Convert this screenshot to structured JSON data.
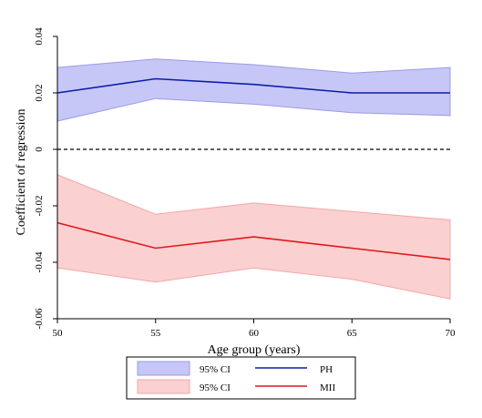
{
  "chart_data": {
    "type": "line",
    "xlabel": "Age group (years)",
    "ylabel": "Coefficient of regression",
    "x": [
      50,
      55,
      60,
      65,
      70
    ],
    "xlim": [
      50,
      70
    ],
    "ylim": [
      -0.06,
      0.04
    ],
    "x_ticks": [
      50,
      55,
      60,
      65,
      70
    ],
    "x_tick_labels": [
      "50",
      "55",
      "60",
      "65",
      "70"
    ],
    "y_ticks": [
      0.04,
      0.02,
      0,
      -0.02,
      -0.04,
      -0.06
    ],
    "y_tick_labels": [
      "0.04",
      "0.02",
      "0",
      "-0.02",
      "-0.04",
      "-0.06"
    ],
    "reference_line": {
      "y": 0,
      "style": "dashed"
    },
    "grid": false,
    "legend_position": "bottom",
    "series": [
      {
        "name": "PH",
        "color": "#0b1fa8",
        "values": [
          0.02,
          0.025,
          0.023,
          0.02,
          0.02
        ],
        "ci_label": "95% CI",
        "ci_lower": [
          0.01,
          0.018,
          0.016,
          0.013,
          0.012
        ],
        "ci_upper": [
          0.029,
          0.032,
          0.03,
          0.027,
          0.029
        ],
        "ci_fill": "#c7c7f7",
        "ci_stroke": "#9a9ae6"
      },
      {
        "name": "MII",
        "color": "#e0191b",
        "values": [
          -0.026,
          -0.035,
          -0.031,
          -0.035,
          -0.039
        ],
        "ci_label": "95% CI",
        "ci_lower": [
          -0.042,
          -0.047,
          -0.042,
          -0.046,
          -0.053
        ],
        "ci_upper": [
          -0.009,
          -0.023,
          -0.019,
          -0.022,
          -0.025
        ],
        "ci_fill": "#fbd0d0",
        "ci_stroke": "#f3a7a7"
      }
    ]
  }
}
